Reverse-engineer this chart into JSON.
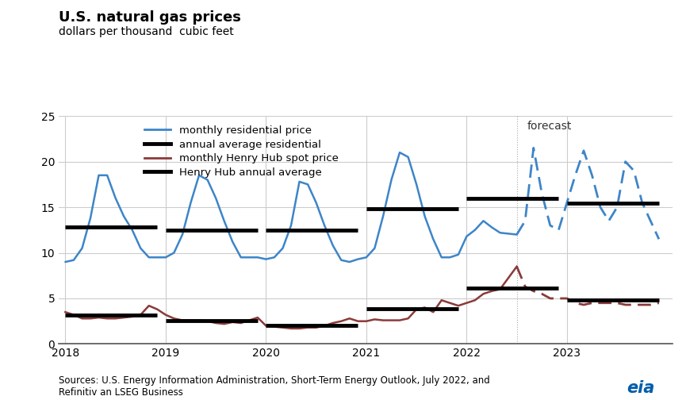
{
  "title": "U.S. natural gas prices",
  "subtitle": "dollars per thousand  cubic feet",
  "source_text": "Sources: U.S. Energy Information Administration, Short-Term Energy Outlook, July 2022, and\nRefinitiv an LSEG Business",
  "ylim": [
    0,
    25
  ],
  "yticks": [
    0,
    5,
    10,
    15,
    20,
    25
  ],
  "forecast_label": "forecast",
  "residential_color": "#3d85c8",
  "henry_color": "#8b3a3a",
  "annual_color": "#000000",
  "residential_monthly_x": [
    2018.0,
    2018.083,
    2018.167,
    2018.25,
    2018.333,
    2018.417,
    2018.5,
    2018.583,
    2018.667,
    2018.75,
    2018.833,
    2018.917,
    2019.0,
    2019.083,
    2019.167,
    2019.25,
    2019.333,
    2019.417,
    2019.5,
    2019.583,
    2019.667,
    2019.75,
    2019.833,
    2019.917,
    2020.0,
    2020.083,
    2020.167,
    2020.25,
    2020.333,
    2020.417,
    2020.5,
    2020.583,
    2020.667,
    2020.75,
    2020.833,
    2020.917,
    2021.0,
    2021.083,
    2021.167,
    2021.25,
    2021.333,
    2021.417,
    2021.5,
    2021.583,
    2021.667,
    2021.75,
    2021.833,
    2021.917,
    2022.0,
    2022.083,
    2022.167,
    2022.25,
    2022.333,
    2022.5
  ],
  "residential_monthly_y": [
    9.0,
    9.2,
    10.5,
    13.8,
    18.5,
    18.5,
    16.0,
    14.0,
    12.5,
    10.5,
    9.5,
    9.5,
    9.5,
    10.0,
    12.0,
    15.5,
    18.5,
    18.0,
    16.0,
    13.5,
    11.2,
    9.5,
    9.5,
    9.5,
    9.3,
    9.5,
    10.5,
    13.0,
    17.8,
    17.5,
    15.5,
    13.0,
    10.8,
    9.2,
    9.0,
    9.3,
    9.5,
    10.5,
    14.0,
    18.0,
    21.0,
    20.5,
    17.5,
    14.0,
    11.5,
    9.5,
    9.5,
    9.8,
    11.8,
    12.5,
    13.5,
    12.8,
    12.2,
    12.0
  ],
  "residential_monthly_forecast_x": [
    2022.5,
    2022.583,
    2022.667,
    2022.75,
    2022.833,
    2022.917,
    2023.0,
    2023.083,
    2023.167,
    2023.25,
    2023.333,
    2023.417,
    2023.5,
    2023.583,
    2023.667,
    2023.75,
    2023.833,
    2023.917
  ],
  "residential_monthly_forecast_y": [
    12.0,
    13.5,
    21.5,
    16.5,
    13.0,
    12.5,
    15.5,
    18.5,
    21.2,
    18.5,
    15.0,
    13.5,
    15.0,
    20.0,
    19.0,
    15.5,
    13.5,
    11.5
  ],
  "henry_monthly_x": [
    2018.0,
    2018.083,
    2018.167,
    2018.25,
    2018.333,
    2018.417,
    2018.5,
    2018.583,
    2018.667,
    2018.75,
    2018.833,
    2018.917,
    2019.0,
    2019.083,
    2019.167,
    2019.25,
    2019.333,
    2019.417,
    2019.5,
    2019.583,
    2019.667,
    2019.75,
    2019.833,
    2019.917,
    2020.0,
    2020.083,
    2020.167,
    2020.25,
    2020.333,
    2020.417,
    2020.5,
    2020.583,
    2020.667,
    2020.75,
    2020.833,
    2020.917,
    2021.0,
    2021.083,
    2021.167,
    2021.25,
    2021.333,
    2021.417,
    2021.5,
    2021.583,
    2021.667,
    2021.75,
    2021.833,
    2021.917,
    2022.0,
    2022.083,
    2022.167,
    2022.25,
    2022.333,
    2022.5
  ],
  "henry_monthly_y": [
    3.5,
    3.2,
    2.8,
    2.8,
    2.9,
    2.8,
    2.8,
    2.9,
    3.0,
    3.2,
    4.2,
    3.8,
    3.2,
    2.8,
    2.6,
    2.6,
    2.6,
    2.5,
    2.3,
    2.2,
    2.4,
    2.3,
    2.6,
    2.9,
    2.0,
    1.9,
    1.8,
    1.7,
    1.7,
    1.8,
    1.8,
    2.0,
    2.3,
    2.5,
    2.8,
    2.5,
    2.5,
    2.7,
    2.6,
    2.6,
    2.6,
    2.8,
    3.8,
    4.0,
    3.5,
    4.8,
    4.5,
    4.2,
    4.5,
    4.8,
    5.5,
    5.8,
    6.0,
    8.5
  ],
  "henry_monthly_forecast_x": [
    2022.5,
    2022.583,
    2022.667,
    2022.75,
    2022.833,
    2022.917,
    2023.0,
    2023.083,
    2023.167,
    2023.25,
    2023.333,
    2023.417,
    2023.5,
    2023.583,
    2023.667,
    2023.75,
    2023.833,
    2023.917
  ],
  "henry_monthly_forecast_y": [
    8.5,
    6.3,
    5.8,
    5.5,
    5.0,
    5.0,
    5.0,
    4.5,
    4.3,
    4.5,
    4.5,
    4.5,
    4.5,
    4.3,
    4.3,
    4.3,
    4.3,
    4.5
  ],
  "annual_residential": [
    {
      "x_start": 2018.0,
      "x_end": 2018.917,
      "y": 12.8
    },
    {
      "x_start": 2019.0,
      "x_end": 2019.917,
      "y": 12.5
    },
    {
      "x_start": 2020.0,
      "x_end": 2020.917,
      "y": 12.5
    },
    {
      "x_start": 2021.0,
      "x_end": 2021.917,
      "y": 14.8
    },
    {
      "x_start": 2022.0,
      "x_end": 2022.917,
      "y": 16.0
    },
    {
      "x_start": 2023.0,
      "x_end": 2023.917,
      "y": 15.4
    }
  ],
  "annual_henry": [
    {
      "x_start": 2018.0,
      "x_end": 2018.917,
      "y": 3.15
    },
    {
      "x_start": 2019.0,
      "x_end": 2019.917,
      "y": 2.57
    },
    {
      "x_start": 2020.0,
      "x_end": 2020.917,
      "y": 2.03
    },
    {
      "x_start": 2021.0,
      "x_end": 2021.917,
      "y": 3.9
    },
    {
      "x_start": 2022.0,
      "x_end": 2022.917,
      "y": 6.15
    },
    {
      "x_start": 2023.0,
      "x_end": 2023.917,
      "y": 4.85
    }
  ],
  "forecast_x_start": 2022.5,
  "xlim_left": 2017.93,
  "xlim_right": 2024.05,
  "bg_color": "#ffffff",
  "grid_color": "#cccccc"
}
